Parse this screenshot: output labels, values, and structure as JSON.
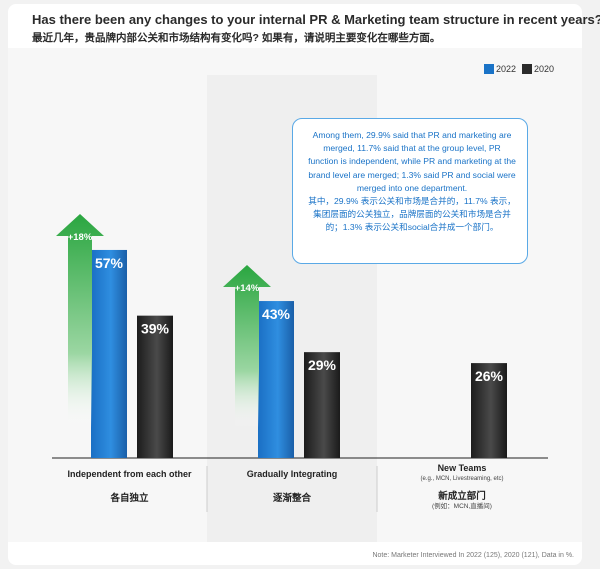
{
  "title": "Has there been any changes to your internal PR & Marketing team structure in recent years?",
  "subtitle": "最近几年，贵品牌内部公关和市场结构有变化吗? 如果有，请说明主要变化在哪些方面。",
  "note": "Note: Marketer Interviewed In 2022 (125), 2020 (121), Data in %.",
  "callout": {
    "en": "Among them, 29.9% said that PR and marketing are merged, 11.7% said that at the group level, PR function is independent, while PR and marketing at the brand level are merged; 1.3% said PR and social were merged into one department.",
    "zh": "其中，29.9% 表示公关和市场是合并的，11.7% 表示，集团层面的公关独立，品牌层面的公关和市场是合并的；1.3% 表示公关和social合并成一个部门。"
  },
  "colors": {
    "2022": "#1a73c7",
    "2020": "#2b2b2b",
    "arrow": "#3cb54a"
  },
  "chart_data": {
    "type": "bar",
    "categories": [
      "Independent from each other",
      "Gradually Integrating",
      "New Teams"
    ],
    "categories_zh": [
      "各自独立",
      "逐渐整合",
      "新成立部门"
    ],
    "category_sub": [
      "",
      "",
      "(e.g., MCN, Livestreaming, etc)"
    ],
    "category_zh_sub": [
      "",
      "",
      "(例如：MCN,直播间)"
    ],
    "series": [
      {
        "name": "2022",
        "values": [
          57,
          43,
          null
        ],
        "labels": [
          "57%",
          "43%",
          ""
        ]
      },
      {
        "name": "2020",
        "values": [
          39,
          29,
          26
        ],
        "labels": [
          "39%",
          "29%",
          "26%"
        ]
      }
    ],
    "changes": [
      "+18%",
      "+14%",
      ""
    ],
    "ylim": [
      0,
      60
    ],
    "legend": "top-right",
    "grid": false
  }
}
